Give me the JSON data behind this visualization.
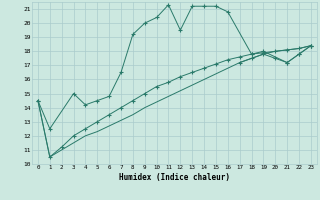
{
  "title": "",
  "xlabel": "Humidex (Indice chaleur)",
  "bg_color": "#cce8e0",
  "grid_color": "#aacccc",
  "line_color": "#2a7a6a",
  "xlim": [
    -0.5,
    23.5
  ],
  "ylim": [
    10,
    21.5
  ],
  "yticks": [
    10,
    11,
    12,
    13,
    14,
    15,
    16,
    17,
    18,
    19,
    20,
    21
  ],
  "xticks": [
    0,
    1,
    2,
    3,
    4,
    5,
    6,
    7,
    8,
    9,
    10,
    11,
    12,
    13,
    14,
    15,
    16,
    17,
    18,
    19,
    20,
    21,
    22,
    23
  ],
  "series1_x": [
    0,
    1,
    3,
    4,
    5,
    6,
    7,
    8,
    9,
    10,
    11,
    12,
    13,
    14,
    15,
    16,
    18,
    19,
    21,
    22,
    23
  ],
  "series1_y": [
    14.5,
    12.5,
    15.0,
    14.2,
    14.5,
    14.8,
    16.5,
    19.2,
    20.0,
    20.4,
    21.3,
    19.5,
    21.2,
    21.2,
    21.2,
    20.8,
    17.8,
    18.0,
    17.2,
    17.8,
    18.4
  ],
  "series2_x": [
    17,
    18,
    19,
    20,
    21,
    22,
    23
  ],
  "series2_y": [
    17.2,
    17.5,
    17.8,
    17.5,
    17.2,
    17.8,
    18.4
  ],
  "series3_x": [
    0,
    1,
    2,
    3,
    4,
    5,
    6,
    7,
    8,
    9,
    10,
    11,
    12,
    13,
    14,
    15,
    16,
    17,
    18,
    19,
    20,
    21,
    22,
    23
  ],
  "series3_y": [
    14.5,
    10.5,
    11.2,
    12.0,
    12.5,
    13.0,
    13.5,
    14.0,
    14.5,
    15.0,
    15.5,
    15.8,
    16.2,
    16.5,
    16.8,
    17.1,
    17.4,
    17.6,
    17.8,
    17.9,
    18.0,
    18.1,
    18.2,
    18.4
  ],
  "series4_x": [
    0,
    1,
    2,
    3,
    4,
    5,
    6,
    7,
    8,
    9,
    10,
    11,
    12,
    13,
    14,
    15,
    16,
    17,
    18,
    19,
    20,
    21,
    22,
    23
  ],
  "series4_y": [
    14.5,
    10.5,
    11.0,
    11.5,
    12.0,
    12.3,
    12.7,
    13.1,
    13.5,
    14.0,
    14.4,
    14.8,
    15.2,
    15.6,
    16.0,
    16.4,
    16.8,
    17.2,
    17.5,
    17.8,
    18.0,
    18.1,
    18.2,
    18.4
  ]
}
